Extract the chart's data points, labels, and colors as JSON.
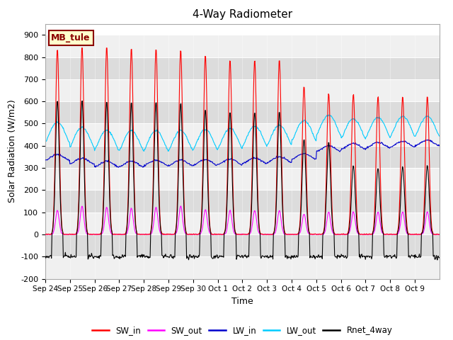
{
  "title": "4-Way Radiometer",
  "xlabel": "Time",
  "ylabel": "Solar Radiation (W/m2)",
  "ylim": [
    -200,
    950
  ],
  "yticks": [
    -200,
    -100,
    0,
    100,
    200,
    300,
    400,
    500,
    600,
    700,
    800,
    900
  ],
  "station_label": "MB_tule",
  "colors": {
    "SW_in": "#ff0000",
    "SW_out": "#ff00ff",
    "LW_in": "#0000cc",
    "LW_out": "#00ccff",
    "Rnet_4way": "#000000"
  },
  "x_tick_labels": [
    "Sep 24",
    "Sep 25",
    "Sep 26",
    "Sep 27",
    "Sep 28",
    "Sep 29",
    "Sep 30",
    "Oct 1",
    "Oct 2",
    "Oct 3",
    "Oct 4",
    "Oct 5",
    "Oct 6",
    "Oct 7",
    "Oct 8",
    "Oct 9"
  ],
  "num_days": 16,
  "line_width": 0.8,
  "stripe_colors": [
    "#f0f0f0",
    "#dcdcdc"
  ]
}
